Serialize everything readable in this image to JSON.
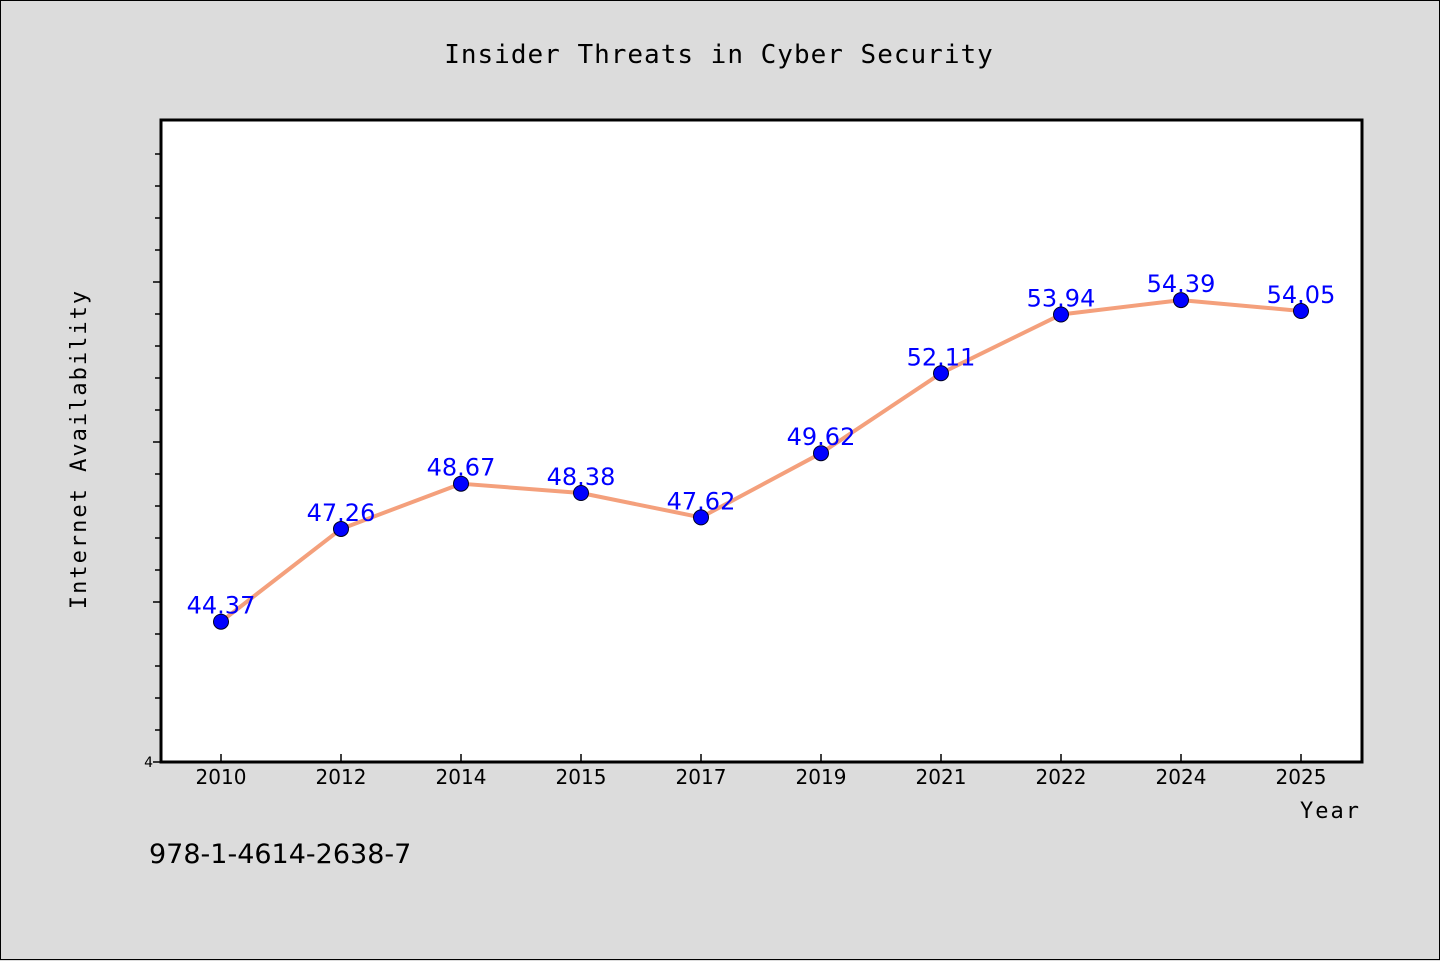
{
  "chart_data": {
    "type": "line",
    "title": "Insider Threats in Cyber Security",
    "xlabel": "Year",
    "ylabel": "Internet Availability",
    "categories": [
      "2010",
      "2012",
      "2014",
      "2015",
      "2017",
      "2019",
      "2021",
      "2022",
      "2024",
      "2025"
    ],
    "series": [
      {
        "values": [
          44.37,
          47.26,
          48.67,
          48.38,
          47.62,
          49.62,
          52.11,
          53.94,
          54.39,
          54.05
        ],
        "labels": [
          "44.37",
          "47.26",
          "48.67",
          "48.38",
          "47.62",
          "49.62",
          "52.11",
          "53.94",
          "54.39",
          "54.05"
        ],
        "line_color": "#f4a07c",
        "marker_color": "#0000ff"
      }
    ],
    "ylim": [
      40,
      60
    ],
    "y_tick_labels": [
      "4"
    ],
    "grid": false,
    "legend": "none"
  },
  "footer": {
    "isbn": "978-1-4614-2638-7"
  },
  "colors": {
    "background": "#dcdcdc",
    "plot_background": "#ffffff",
    "data_label": "#0000ff"
  }
}
